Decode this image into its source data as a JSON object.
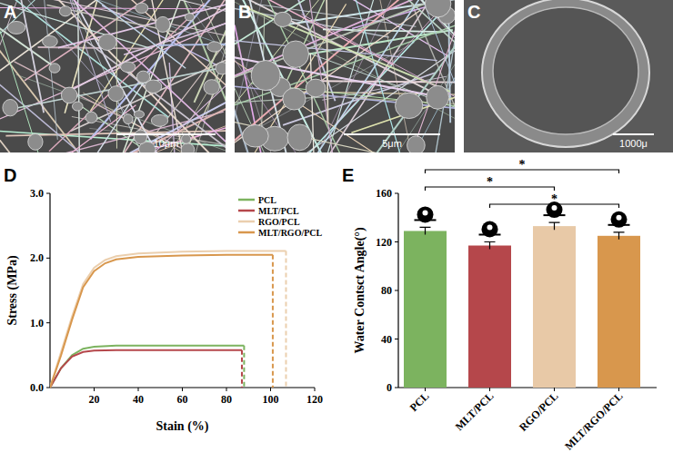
{
  "images": [
    {
      "label": "A",
      "scale_bar": "10μm"
    },
    {
      "label": "B",
      "scale_bar": "5μm"
    },
    {
      "label": "C",
      "scale_bar": "1000μ"
    }
  ],
  "chart_data": [
    {
      "type": "line",
      "label": "D",
      "x_label": "Stain (%)",
      "y_label": "Stress (MPa)",
      "xlim": [
        0,
        120
      ],
      "xticks": [
        20,
        40,
        60,
        80,
        100,
        120
      ],
      "ylim": [
        0,
        3
      ],
      "yticks": [
        {
          "value": 0,
          "label": "0.0"
        },
        {
          "value": 1,
          "label": "1.0"
        },
        {
          "value": 2,
          "label": "2.0"
        },
        {
          "value": 3,
          "label": "3.0"
        }
      ],
      "legend": "top-right",
      "series": [
        {
          "name": "PCL",
          "color": "#7cb35f",
          "x": [
            0,
            5,
            10,
            15,
            20,
            30,
            40,
            60,
            80,
            88,
            88
          ],
          "values": [
            0,
            0.3,
            0.5,
            0.6,
            0.63,
            0.65,
            0.65,
            0.65,
            0.65,
            0.65,
            0
          ]
        },
        {
          "name": "MLT/PCL",
          "color": "#b5474b",
          "x": [
            0,
            5,
            10,
            15,
            20,
            30,
            40,
            60,
            80,
            87,
            87
          ],
          "values": [
            0,
            0.3,
            0.48,
            0.55,
            0.57,
            0.58,
            0.58,
            0.58,
            0.58,
            0.58,
            0
          ]
        },
        {
          "name": "RGO/PCL",
          "color": "#ebcfae",
          "x": [
            0,
            5,
            10,
            15,
            20,
            25,
            30,
            40,
            60,
            80,
            100,
            107,
            107
          ],
          "values": [
            0,
            0.55,
            1.1,
            1.6,
            1.85,
            1.97,
            2.03,
            2.07,
            2.1,
            2.11,
            2.11,
            2.11,
            0
          ]
        },
        {
          "name": "MLT/RGO/PCL",
          "color": "#d8974d",
          "x": [
            0,
            5,
            10,
            15,
            20,
            25,
            30,
            40,
            60,
            80,
            101,
            101
          ],
          "values": [
            0,
            0.5,
            1.05,
            1.55,
            1.8,
            1.92,
            1.98,
            2.02,
            2.04,
            2.05,
            2.05,
            0
          ]
        }
      ]
    },
    {
      "type": "bar",
      "label": "E",
      "y_label": "Water Contsct Angle(°)",
      "categories": [
        "PCL",
        "MLT/PCL",
        "RGO/PCL",
        "MLT/RGO/PCL"
      ],
      "values": [
        129,
        117,
        133,
        125
      ],
      "errors": [
        3,
        3,
        3,
        3
      ],
      "colors": [
        "#7cb35f",
        "#b5474b",
        "#e8c9a7",
        "#d8974d"
      ],
      "ylim": [
        0,
        160
      ],
      "yticks": [
        0,
        40,
        80,
        120,
        160
      ],
      "annotations": [
        {
          "from": 0,
          "to": 3,
          "label": "*"
        },
        {
          "from": 0,
          "to": 2,
          "label": "*"
        },
        {
          "from": 1,
          "to": 3,
          "label": "*"
        }
      ]
    }
  ]
}
